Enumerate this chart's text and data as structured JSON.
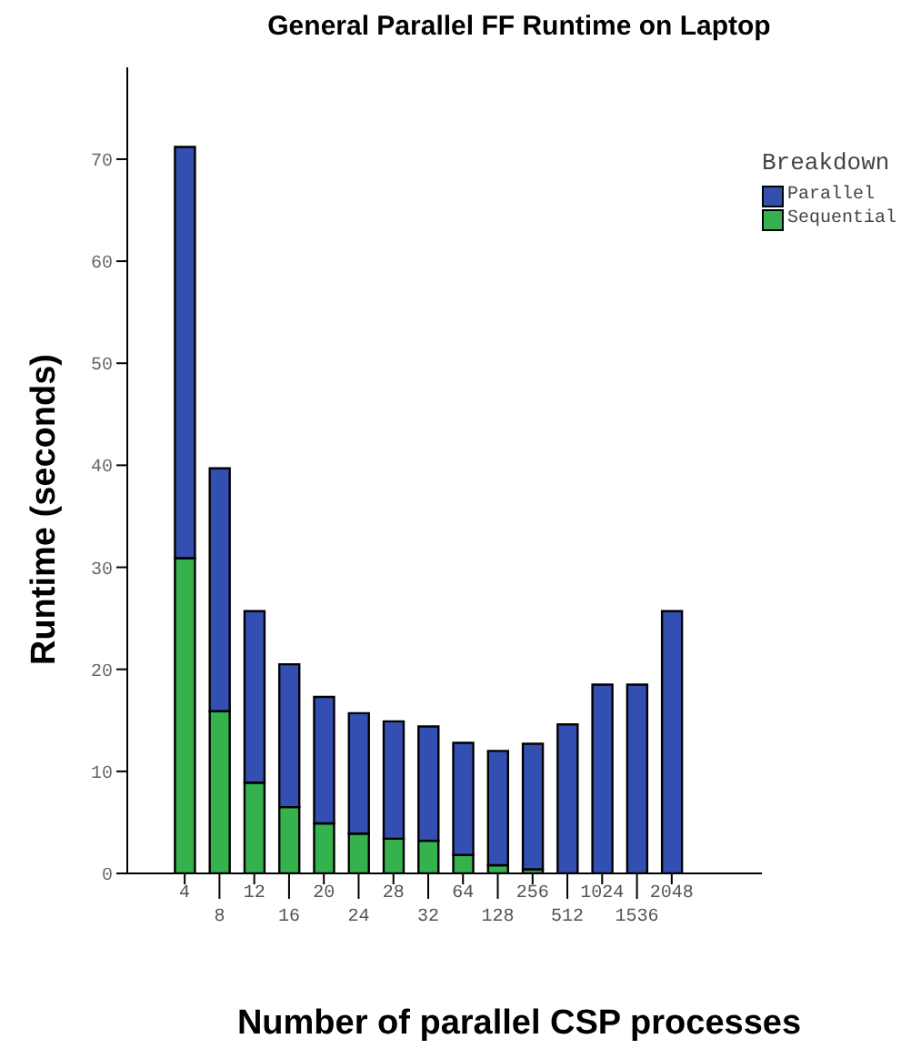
{
  "chart_data": {
    "type": "bar",
    "title": "General Parallel FF Runtime on Laptop",
    "xlabel": "Number of parallel CSP processes",
    "ylabel": "Runtime (seconds)",
    "legend_title": "Breakdown",
    "categories": [
      "4",
      "8",
      "12",
      "16",
      "20",
      "24",
      "28",
      "32",
      "64",
      "128",
      "256",
      "512",
      "1024",
      "1536",
      "2048"
    ],
    "stacked": true,
    "series": [
      {
        "name": "Sequential",
        "color": "#35b14e",
        "values": [
          30.9,
          15.9,
          8.9,
          6.5,
          4.9,
          3.9,
          3.4,
          3.2,
          1.8,
          0.8,
          0.4,
          null,
          null,
          null,
          0
        ]
      },
      {
        "name": "Parallel",
        "color": "#334fb2",
        "values": [
          40.3,
          23.8,
          16.8,
          14.0,
          12.4,
          11.8,
          11.5,
          11.2,
          11.0,
          11.2,
          12.3,
          14.6,
          18.5,
          18.5,
          25.7
        ]
      }
    ],
    "ylim": [
      0,
      79
    ],
    "yticks": [
      0,
      10,
      20,
      30,
      40,
      50,
      60,
      70
    ],
    "legend": "top right"
  }
}
